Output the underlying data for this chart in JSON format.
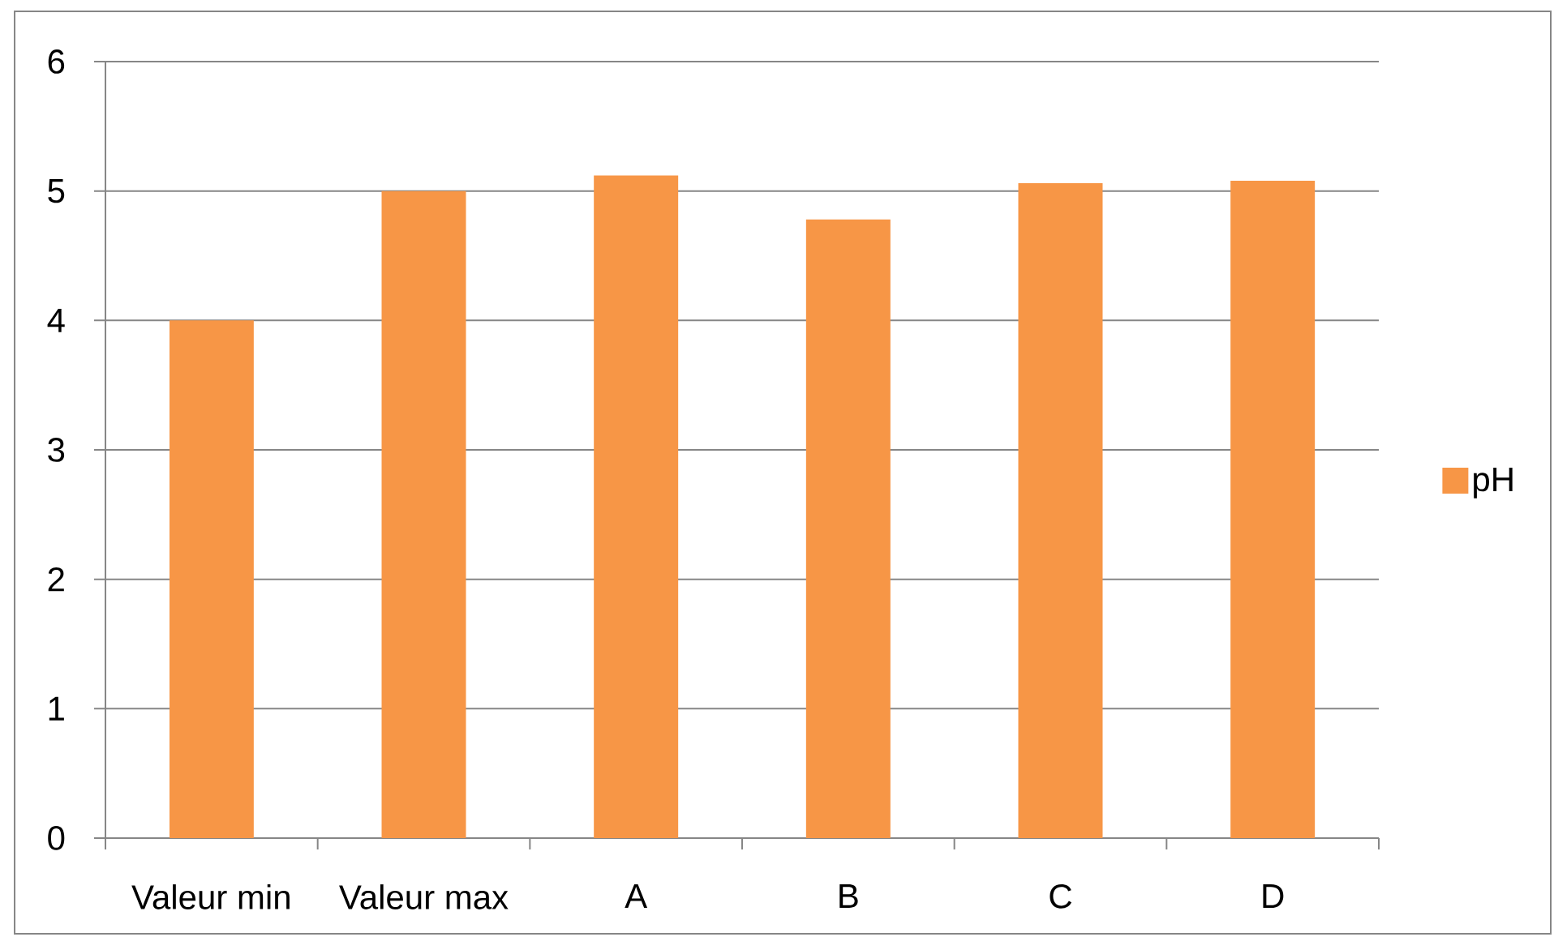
{
  "chart_data": {
    "type": "bar",
    "categories": [
      "Valeur min",
      "Valeur max",
      "A",
      "B",
      "C",
      "D"
    ],
    "series": [
      {
        "name": "pH",
        "color": "#f79646",
        "values": [
          4,
          5,
          5.12,
          4.78,
          5.06,
          5.08
        ]
      }
    ],
    "ylim": [
      0,
      6
    ],
    "yticks": [
      0,
      1,
      2,
      3,
      4,
      5,
      6
    ],
    "grid": "y",
    "legend": "right"
  }
}
